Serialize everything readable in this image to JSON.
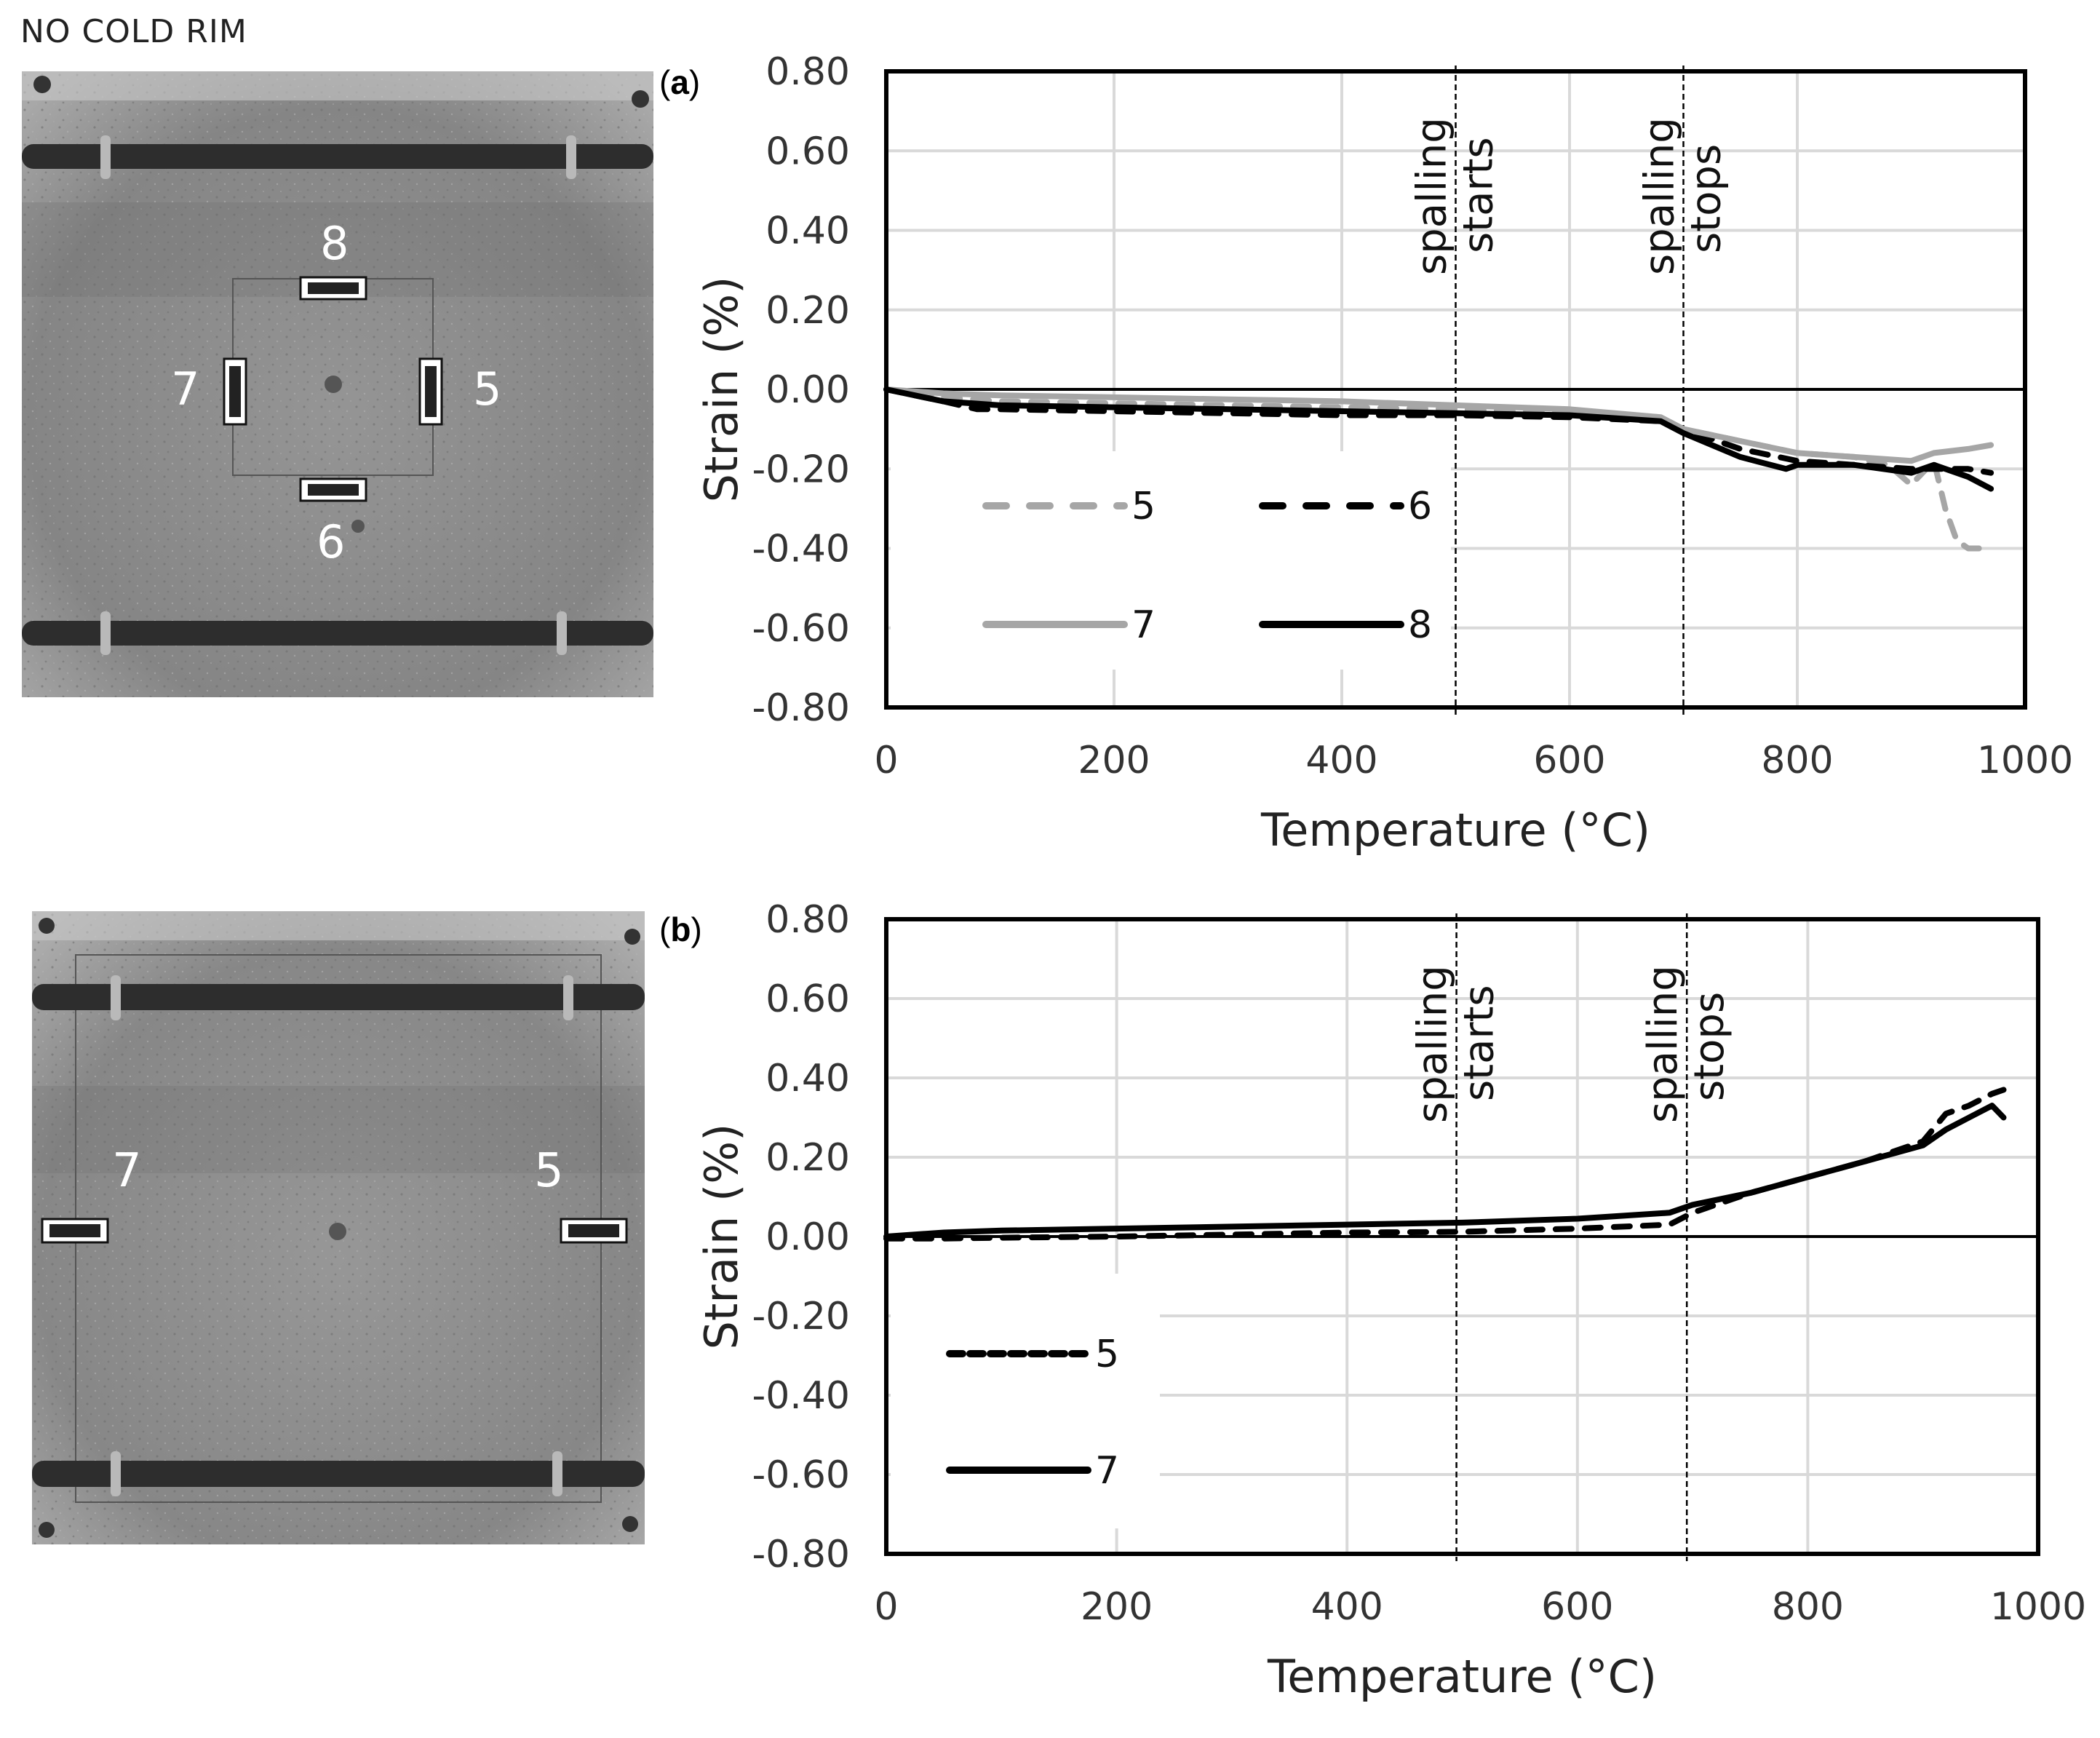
{
  "header": {
    "title": "NO COLD RIM"
  },
  "panels": [
    {
      "label_open": "(",
      "label_letter": "a",
      "label_close": ")",
      "photo": {
        "gauge_numbers": [
          "8",
          "7",
          "5",
          "6"
        ],
        "gauge_tags": [
          "08",
          "07",
          "05",
          "06"
        ]
      }
    },
    {
      "label_open": "(",
      "label_letter": "b",
      "label_close": ")",
      "photo": {
        "gauge_numbers": [
          "7",
          "5"
        ],
        "gauge_tags": [
          "07",
          "05"
        ]
      }
    }
  ],
  "colors": {
    "grey_series": "#a6a6a6",
    "black_series": "#000000",
    "grid": "#d9d9d9"
  },
  "chart_data": [
    {
      "type": "line",
      "id": "a",
      "title": "",
      "xlabel": "Temperature (°C)",
      "ylabel": "Strain (%)",
      "xlim": [
        0,
        1000
      ],
      "ylim": [
        -0.8,
        0.8
      ],
      "xticks": [
        "0",
        "200",
        "400",
        "600",
        "800",
        "1000"
      ],
      "yticks": [
        "0.80",
        "0.60",
        "0.40",
        "0.20",
        "0.00",
        "-0.20",
        "-0.40",
        "-0.60",
        "-0.80"
      ],
      "grid": true,
      "annotations": [
        {
          "x": 500,
          "line1": "spalling",
          "line2": "starts"
        },
        {
          "x": 700,
          "line1": "spalling",
          "line2": "stops"
        }
      ],
      "legend": {
        "position": "lower-left",
        "entries": [
          "5",
          "6",
          "7",
          "8"
        ]
      },
      "series": [
        {
          "name": "5",
          "color": "#a6a6a6",
          "dash": "dashed",
          "x": [
            0,
            50,
            100,
            200,
            300,
            400,
            500,
            600,
            680,
            700,
            750,
            800,
            850,
            880,
            900,
            920,
            930,
            940,
            950,
            970
          ],
          "y": [
            0.0,
            -0.02,
            -0.03,
            -0.035,
            -0.04,
            -0.045,
            -0.05,
            -0.06,
            -0.07,
            -0.1,
            -0.13,
            -0.16,
            -0.17,
            -0.19,
            -0.24,
            -0.18,
            -0.3,
            -0.38,
            -0.4,
            -0.4
          ]
        },
        {
          "name": "6",
          "color": "#000000",
          "dash": "dashed",
          "x": [
            0,
            50,
            80,
            100,
            200,
            300,
            400,
            500,
            600,
            680,
            700,
            750,
            800,
            850,
            900,
            950,
            970
          ],
          "y": [
            0.0,
            -0.03,
            -0.05,
            -0.05,
            -0.055,
            -0.06,
            -0.065,
            -0.065,
            -0.07,
            -0.08,
            -0.1,
            -0.15,
            -0.18,
            -0.19,
            -0.2,
            -0.2,
            -0.21
          ]
        },
        {
          "name": "7",
          "color": "#a6a6a6",
          "dash": "solid",
          "x": [
            0,
            50,
            100,
            200,
            300,
            400,
            500,
            600,
            680,
            700,
            750,
            800,
            850,
            900,
            920,
            950,
            970
          ],
          "y": [
            0.0,
            -0.01,
            -0.015,
            -0.02,
            -0.025,
            -0.03,
            -0.04,
            -0.05,
            -0.07,
            -0.1,
            -0.13,
            -0.16,
            -0.17,
            -0.18,
            -0.16,
            -0.15,
            -0.14
          ]
        },
        {
          "name": "8",
          "color": "#000000",
          "dash": "solid",
          "x": [
            0,
            50,
            100,
            200,
            300,
            400,
            500,
            600,
            680,
            700,
            750,
            790,
            800,
            850,
            900,
            920,
            950,
            970
          ],
          "y": [
            0.0,
            -0.03,
            -0.04,
            -0.045,
            -0.05,
            -0.055,
            -0.06,
            -0.065,
            -0.08,
            -0.11,
            -0.17,
            -0.2,
            -0.19,
            -0.19,
            -0.21,
            -0.19,
            -0.22,
            -0.25
          ]
        }
      ]
    },
    {
      "type": "line",
      "id": "b",
      "title": "",
      "xlabel": "Temperature (°C)",
      "ylabel": "Strain (%)",
      "xlim": [
        0,
        1000
      ],
      "ylim": [
        -0.8,
        0.8
      ],
      "xticks": [
        "0",
        "200",
        "400",
        "600",
        "800",
        "1000"
      ],
      "yticks": [
        "0.80",
        "0.60",
        "0.40",
        "0.20",
        "0.00",
        "-0.20",
        "-0.40",
        "-0.60",
        "-0.80"
      ],
      "grid": true,
      "annotations": [
        {
          "x": 495,
          "line1": "spalling",
          "line2": "starts"
        },
        {
          "x": 695,
          "line1": "spalling",
          "line2": "stops"
        }
      ],
      "legend": {
        "position": "lower-left",
        "entries": [
          "5",
          "7"
        ]
      },
      "series": [
        {
          "name": "5",
          "color": "#000000",
          "dash": "dashed",
          "x": [
            0,
            50,
            100,
            200,
            300,
            400,
            500,
            600,
            680,
            700,
            750,
            800,
            850,
            900,
            920,
            940,
            960,
            970
          ],
          "y": [
            -0.005,
            -0.005,
            -0.003,
            0.0,
            0.005,
            0.01,
            0.012,
            0.02,
            0.03,
            0.06,
            0.11,
            0.15,
            0.19,
            0.24,
            0.31,
            0.33,
            0.36,
            0.37
          ]
        },
        {
          "name": "7",
          "color": "#000000",
          "dash": "solid",
          "x": [
            0,
            50,
            100,
            200,
            300,
            400,
            500,
            600,
            680,
            700,
            750,
            800,
            850,
            900,
            920,
            940,
            960,
            970
          ],
          "y": [
            0.0,
            0.01,
            0.015,
            0.02,
            0.025,
            0.03,
            0.035,
            0.045,
            0.06,
            0.08,
            0.11,
            0.15,
            0.19,
            0.23,
            0.27,
            0.3,
            0.33,
            0.3
          ]
        }
      ]
    }
  ]
}
